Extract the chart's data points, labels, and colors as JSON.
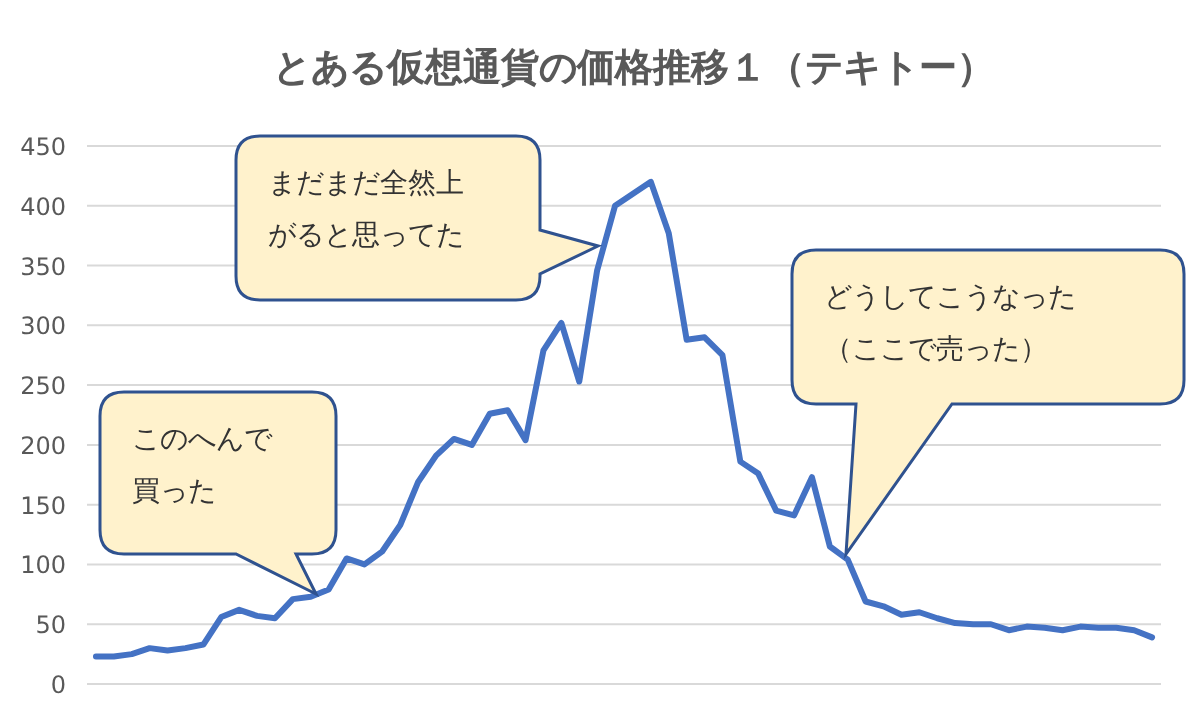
{
  "chart_data": {
    "type": "line",
    "title": "とある仮想通貨の価格推移１（テキトー）",
    "categories": [
      null,
      null,
      null,
      null,
      null,
      null,
      null,
      null,
      null,
      null,
      null,
      null,
      null,
      null,
      null,
      null,
      null,
      null,
      null,
      null,
      null,
      null,
      null,
      null,
      null,
      null,
      null,
      null,
      null,
      null,
      null,
      null,
      null,
      null,
      null,
      null,
      null,
      null,
      null,
      null,
      null,
      null,
      null,
      null,
      null,
      null,
      null,
      null,
      null,
      null,
      null,
      null,
      null,
      null,
      null,
      null,
      null,
      null,
      null,
      null
    ],
    "series": [
      {
        "color": "#4472c4",
        "values": [
          23,
          23,
          25,
          30,
          28,
          30,
          33,
          56,
          62,
          57,
          55,
          71,
          73,
          79,
          105,
          100,
          111,
          133,
          169,
          191,
          205,
          200,
          226,
          229,
          204,
          279,
          302,
          253,
          346,
          400,
          410,
          420,
          377,
          288,
          290,
          275,
          186,
          176,
          145,
          141,
          173,
          115,
          104,
          69,
          65,
          58,
          60,
          55,
          51,
          50,
          50,
          45,
          48,
          47,
          45,
          48,
          47,
          47,
          45,
          39
        ]
      }
    ],
    "ylim": [
      0,
      450
    ],
    "yticks": [
      0,
      50,
      100,
      150,
      200,
      250,
      300,
      350,
      400,
      450
    ],
    "grid": "y",
    "marker": "none",
    "line_style": "solid",
    "annotations": [
      "このへんで買った",
      "まだまだ全然上がると思ってた",
      "どうしてこうなった（ここで売った）"
    ]
  }
}
